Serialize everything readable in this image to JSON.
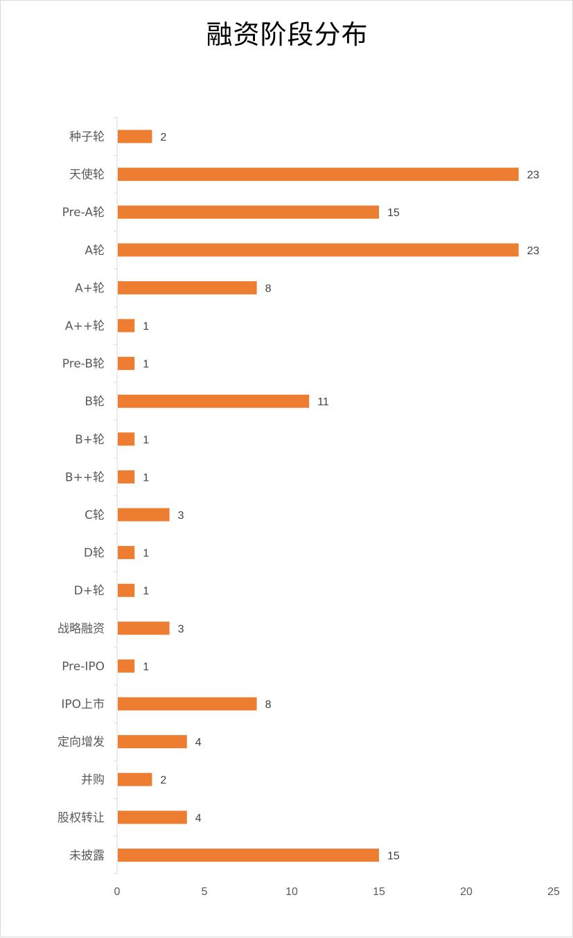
{
  "chart_data": {
    "type": "bar",
    "orientation": "horizontal",
    "title": "融资阶段分布",
    "categories": [
      "种子轮",
      "天使轮",
      "Pre-A轮",
      "A轮",
      "A+轮",
      "A++轮",
      "Pre-B轮",
      "B轮",
      "B+轮",
      "B++轮",
      "C轮",
      "D轮",
      "D+轮",
      "战略融资",
      "Pre-IPO",
      "IPO上市",
      "定向增发",
      "并购",
      "股权转让",
      "未披露"
    ],
    "values": [
      2,
      23,
      15,
      23,
      8,
      1,
      1,
      11,
      1,
      1,
      3,
      1,
      1,
      3,
      1,
      8,
      4,
      2,
      4,
      15
    ],
    "xlim": [
      0,
      25
    ],
    "xticks": [
      0,
      5,
      10,
      15,
      20,
      25
    ],
    "xlabel": "",
    "ylabel": "",
    "grid": false,
    "data_labels": true,
    "bar_color": "#ED7D31"
  }
}
